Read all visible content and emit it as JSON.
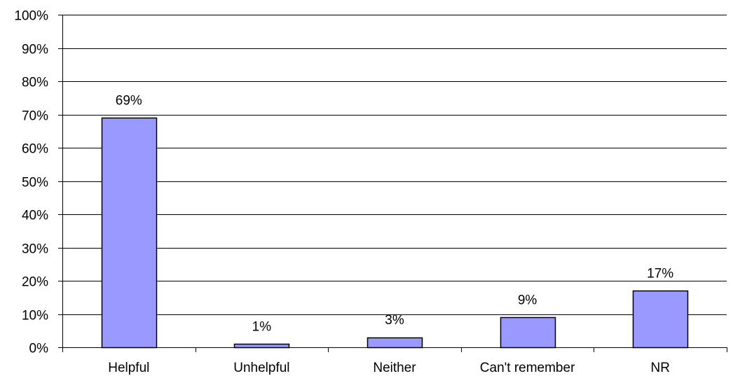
{
  "chart_data": {
    "type": "bar",
    "categories": [
      "Helpful",
      "Unhelpful",
      "Neither",
      "Can't remember",
      "NR"
    ],
    "values": [
      69,
      1,
      3,
      9,
      17
    ],
    "data_labels": [
      "69%",
      "1%",
      "3%",
      "9%",
      "17%"
    ],
    "y_ticks": [
      0,
      10,
      20,
      30,
      40,
      50,
      60,
      70,
      80,
      90,
      100
    ],
    "y_tick_labels": [
      "0%",
      "10%",
      "20%",
      "30%",
      "40%",
      "50%",
      "60%",
      "70%",
      "80%",
      "90%",
      "100%"
    ],
    "ylim": [
      0,
      100
    ],
    "grid": "horizontal",
    "legend": "none",
    "colors": {
      "bar_fill": "#9999ff",
      "bar_stroke": "#000000",
      "grid": "#000000",
      "axis": "#000000"
    }
  }
}
